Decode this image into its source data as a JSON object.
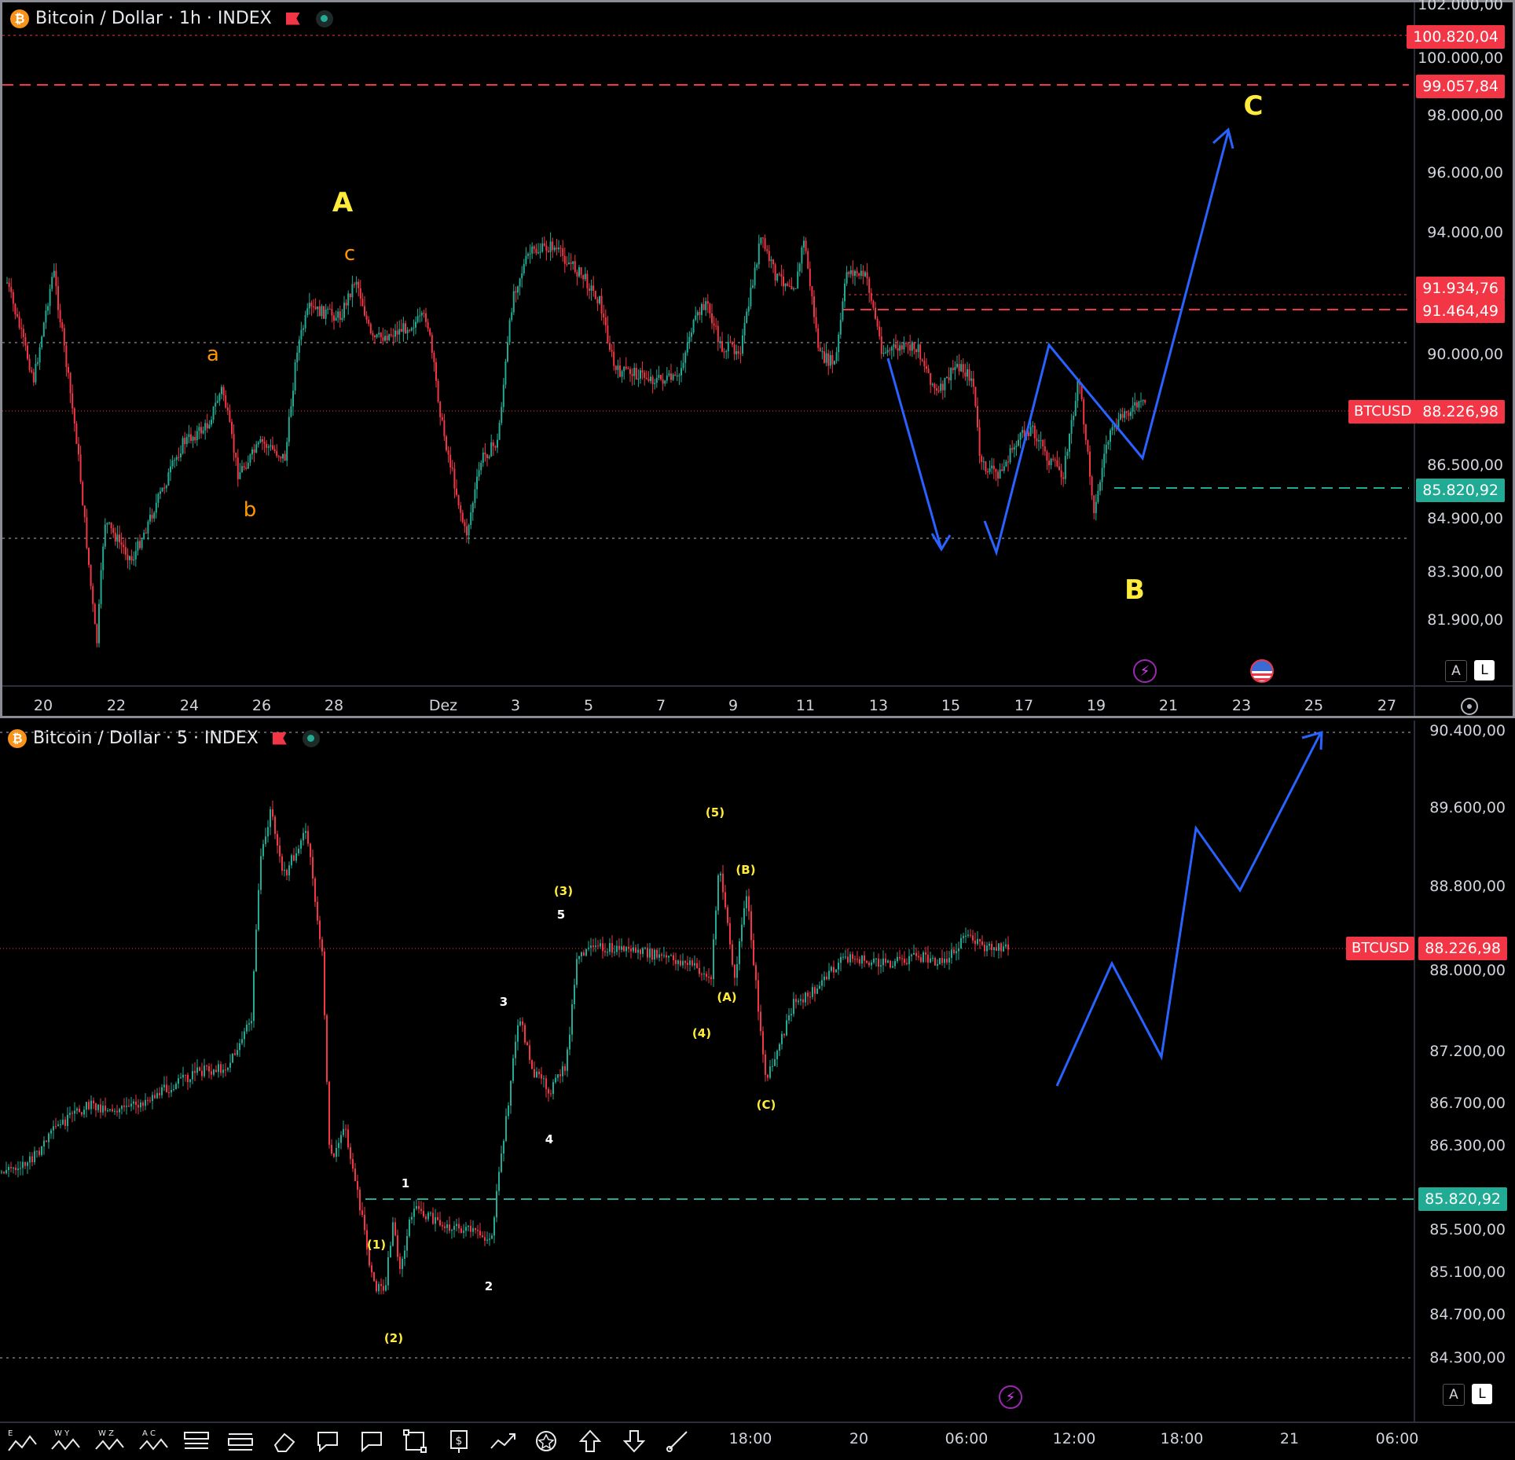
{
  "top_chart": {
    "symbol_title": "Bitcoin / Dollar · 1h · INDEX",
    "btc_icon": "₿",
    "price_axis": [
      "102.000,00",
      "100.000,00",
      "98.000,00",
      "96.000,00",
      "94.000,00",
      "90.000,00",
      "86.500,00",
      "84.900,00",
      "83.300,00",
      "81.900,00"
    ],
    "price_tags": {
      "p1": "100.820,04",
      "p2": "99.057,84",
      "p3": "91.934,76",
      "p4": "91.464,49",
      "current_symbol": "BTCUSD",
      "current": "88.226,98",
      "support": "85.820,92"
    },
    "time_axis": [
      "20",
      "22",
      "24",
      "26",
      "28",
      "Dez",
      "3",
      "5",
      "7",
      "9",
      "11",
      "13",
      "15",
      "17",
      "19",
      "21",
      "23",
      "25",
      "27"
    ],
    "wave_labels": {
      "A": "A",
      "B": "B",
      "C": "C",
      "a": "a",
      "b": "b",
      "c": "c"
    },
    "buttons": {
      "auto": "A",
      "log": "L"
    }
  },
  "bottom_chart": {
    "symbol_title": "Bitcoin / Dollar · 5 · INDEX",
    "btc_icon": "₿",
    "price_axis": [
      "90.400,00",
      "89.600,00",
      "88.800,00",
      "88.000,00",
      "87.200,00",
      "86.700,00",
      "86.300,00",
      "85.500,00",
      "85.100,00",
      "84.700,00",
      "84.300,00"
    ],
    "price_tags": {
      "current_symbol": "BTCUSD",
      "current": "88.226,98",
      "support": "85.820,92"
    },
    "time_axis": [
      "18:00",
      "20",
      "06:00",
      "12:00",
      "18:00",
      "21",
      "06:00"
    ],
    "wave_labels": {
      "w1": "(1)",
      "w2": "(2)",
      "w3": "(3)",
      "w4": "(4)",
      "w5": "(5)",
      "wA": "(A)",
      "wB": "(B)",
      "wC": "(C)",
      "s1": "1",
      "s2": "2",
      "s3": "3",
      "s4": "4",
      "s5": "5"
    },
    "buttons": {
      "auto": "A",
      "log": "L"
    }
  },
  "toolbar": {
    "tools": [
      "elliott-impulse-icon",
      "elliott-triangle-icon",
      "elliott-double-combo-icon",
      "elliott-correction-icon",
      "long-position-icon",
      "short-position-icon",
      "eraser-icon",
      "callout-icon",
      "comment-icon",
      "rectangle-icon",
      "price-label-icon",
      "path-icon",
      "anchor-icon",
      "arrow-up-icon",
      "arrow-down-icon",
      "brush-icon"
    ],
    "labels": {
      "t0": "E",
      "t1": "W Y",
      "t2": "W Z",
      "t3": "A C"
    }
  },
  "colors": {
    "up": "#22ab94",
    "down": "#f23645",
    "projection": "#2962ff",
    "wave_yellow": "#ffeb3b",
    "wave_orange": "#ff9800"
  }
}
